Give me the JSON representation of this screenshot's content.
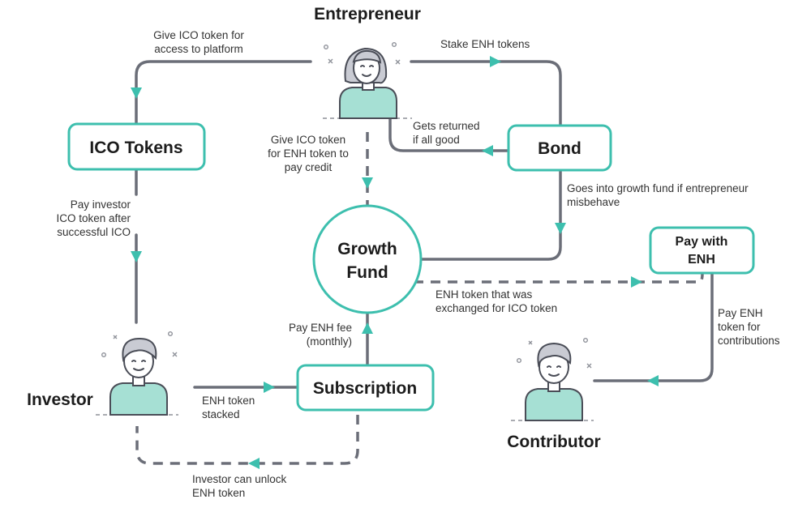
{
  "actors": {
    "entrepreneur": "Entrepreneur",
    "investor": "Investor",
    "contributor": "Contributor"
  },
  "boxes": {
    "ico_tokens": "ICO Tokens",
    "bond": "Bond",
    "growth_fund": [
      "Growth",
      "Fund"
    ],
    "subscription": "Subscription",
    "pay_with_enh": [
      "Pay with",
      "ENH"
    ]
  },
  "labels": {
    "give_ico_access": [
      "Give ICO token for",
      "access to platform"
    ],
    "stake_enh": [
      "Stake ENH tokens"
    ],
    "gets_returned": [
      "Gets returned",
      "if all good"
    ],
    "give_ico_for_enh": [
      "Give ICO token",
      "for ENH token to",
      "pay credit"
    ],
    "growth_fund_if_misbehave": [
      "Goes into growth fund if entrepreneur",
      "misbehave"
    ],
    "pay_investor": [
      "Pay investor",
      "ICO token after",
      "successful ICO"
    ],
    "enh_exchanged": [
      "ENH token that was",
      "exchanged for ICO token"
    ],
    "pay_enh_fee": [
      "Pay ENH fee",
      "(monthly)"
    ],
    "enh_stacked": [
      "ENH token",
      "stacked"
    ],
    "investor_unlock": [
      "Investor can unlock",
      "ENH token"
    ],
    "pay_enh_contributions": [
      "Pay ENH",
      "token for",
      "contributions"
    ]
  },
  "colors": {
    "accent": "#3dbfae",
    "line": "#6b6e78",
    "shirt": "#a6e0d4"
  }
}
